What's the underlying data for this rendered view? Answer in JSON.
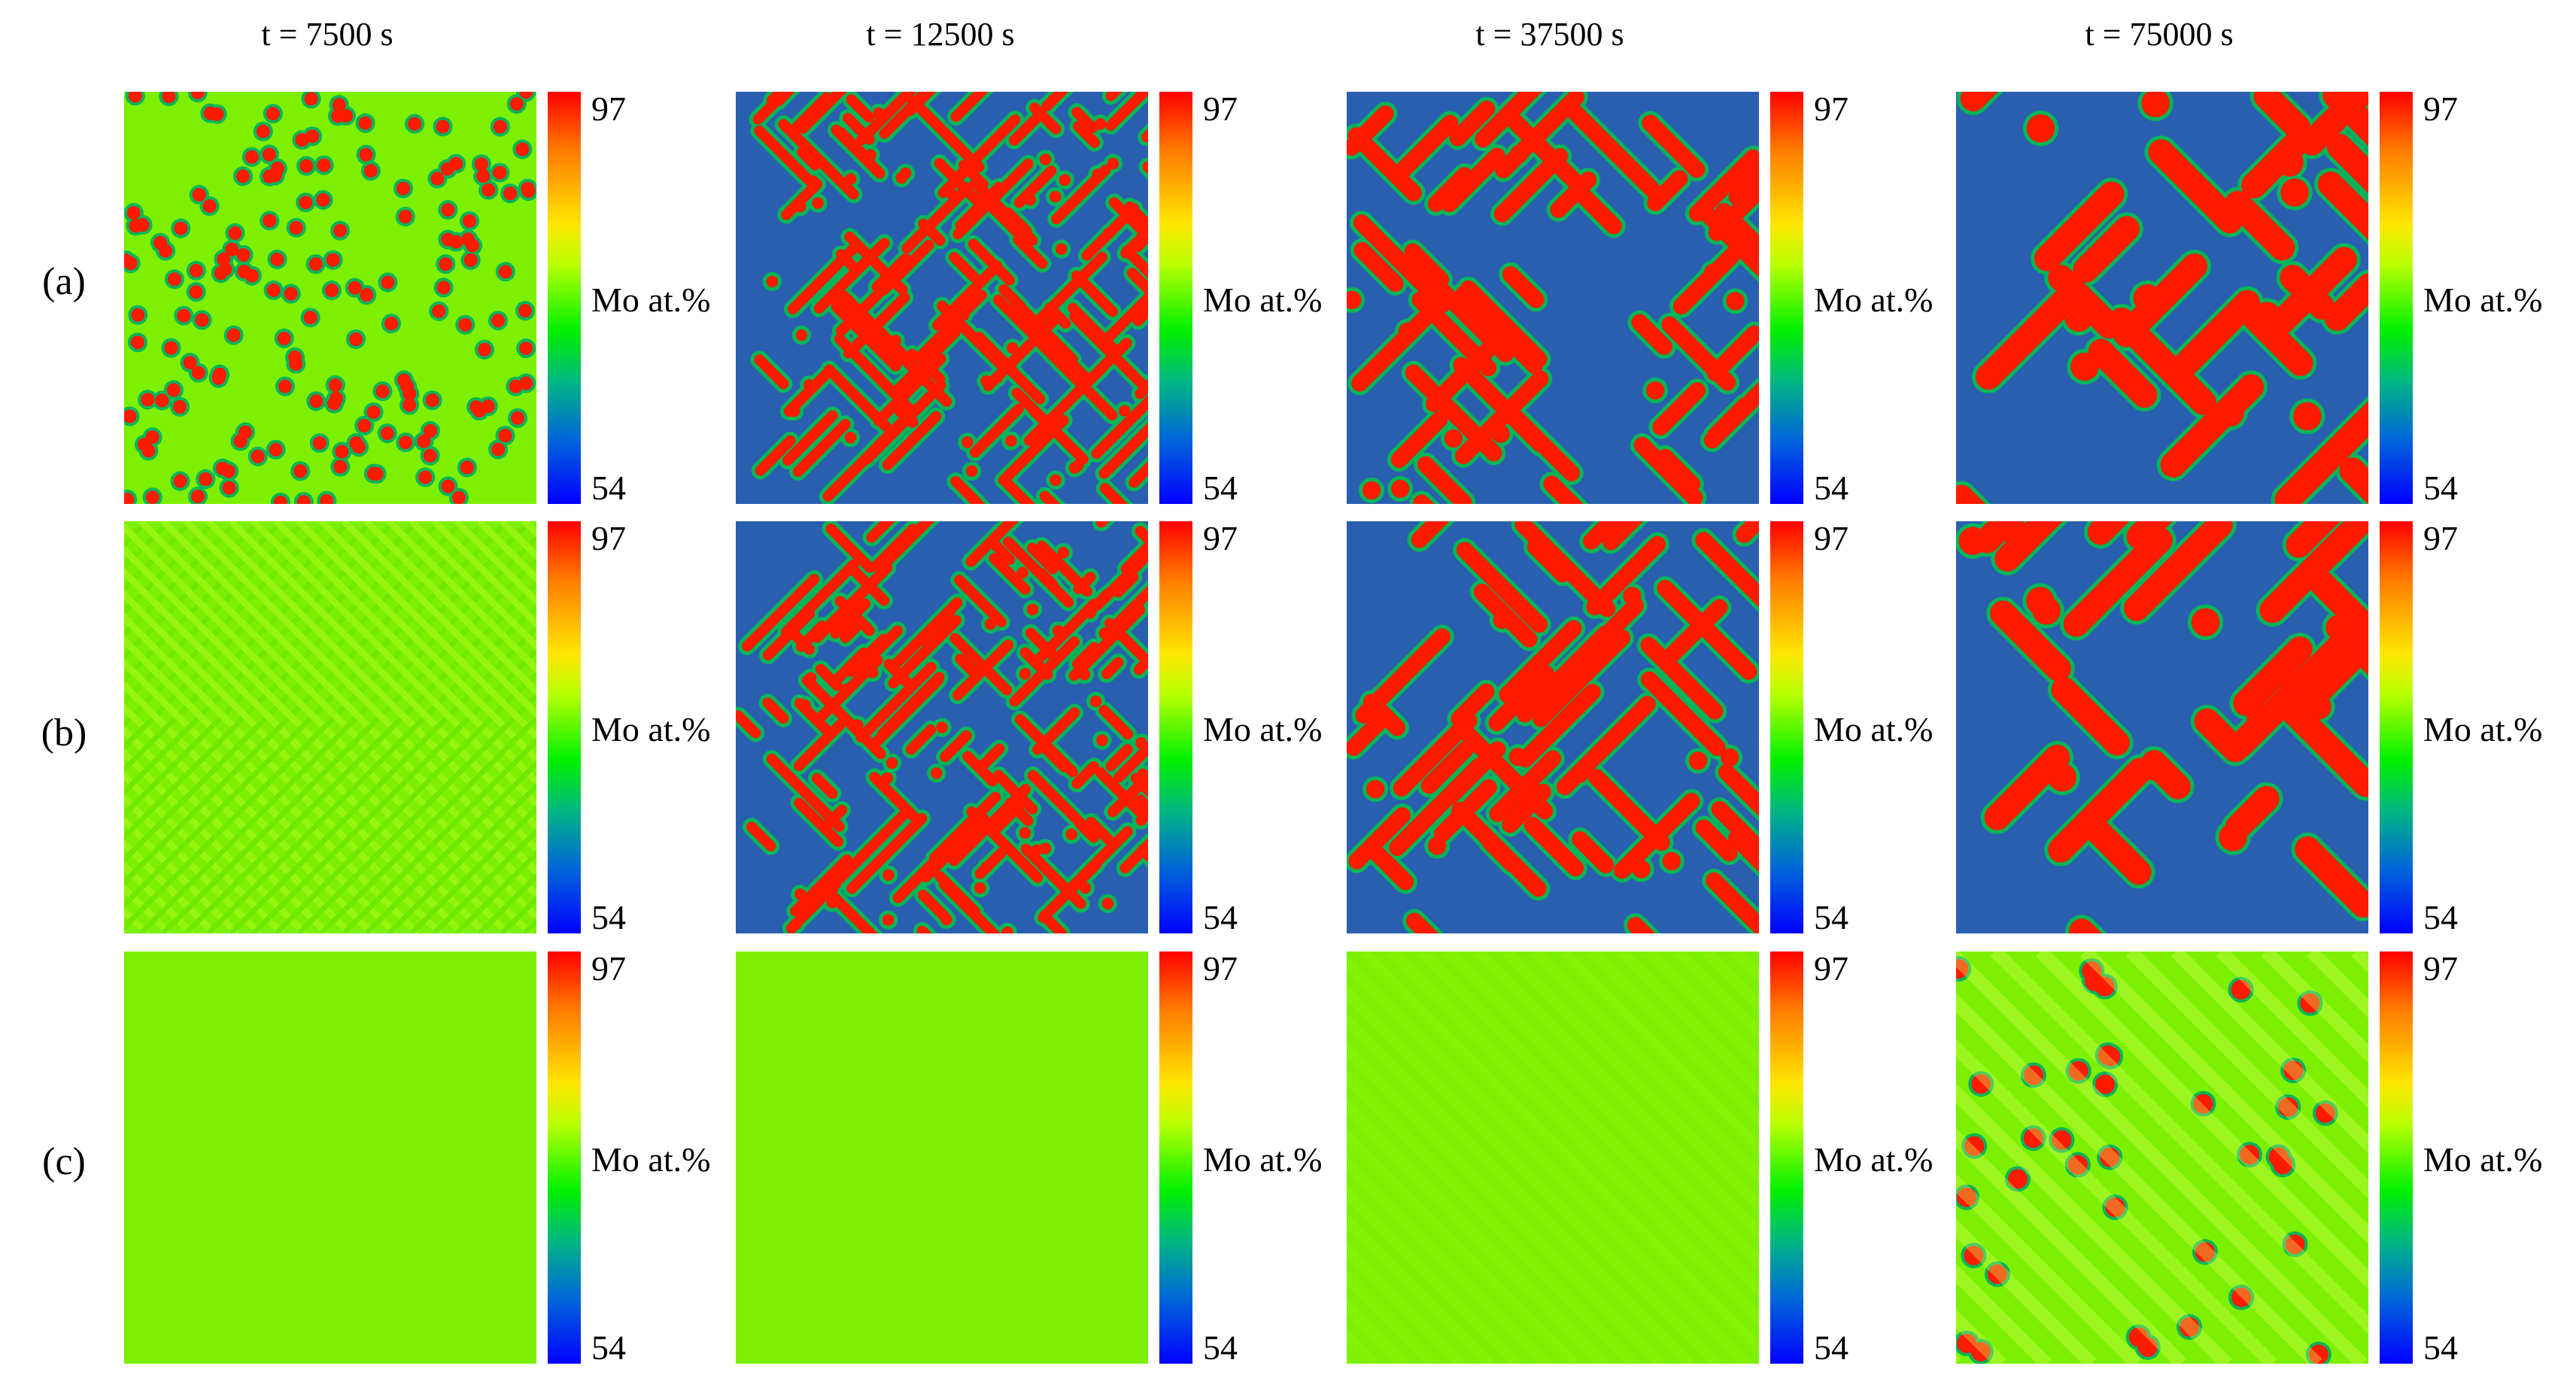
{
  "time_labels": [
    "t = 7500 s",
    "t = 12500 s",
    "t = 37500 s",
    "t = 75000 s"
  ],
  "row_labels": [
    "(a)",
    "(b)",
    "(c)"
  ],
  "colorbar": {
    "max": "97",
    "min": "54",
    "label": "Mo at.%"
  },
  "colors": {
    "high_mo": "#ff1a00",
    "low_mo": "#2a5fb0",
    "matrix": "#7cf000",
    "mid": "#00b45a"
  },
  "panels": [
    [
      "fine dense droplets",
      "stripe/droplet mix",
      "coarsened stripes",
      "coarse labyrinth"
    ],
    [
      "faint modulation",
      "fine droplets and stripes",
      "stripes",
      "coarse stripes"
    ],
    [
      "uniform",
      "uniform",
      "near uniform",
      "sparse droplets"
    ]
  ]
}
